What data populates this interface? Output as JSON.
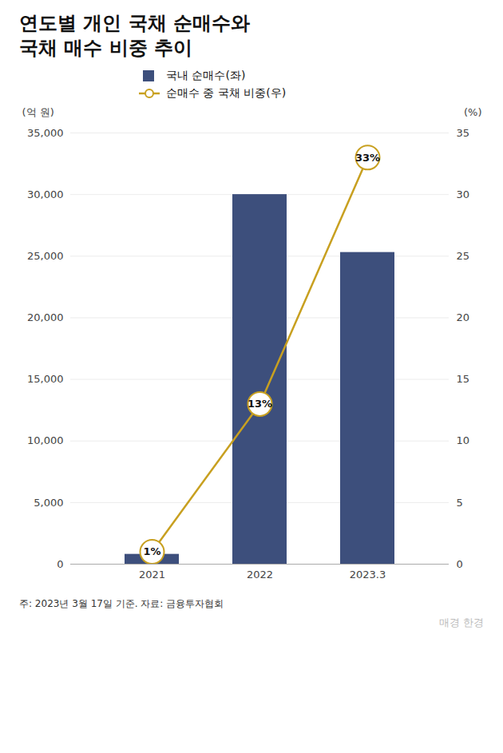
{
  "chart_data": {
    "type": "bar",
    "title": "연도별 개인 국채 순매수와\n국채 매수 비중 추이",
    "categories": [
      "2021",
      "2022",
      "2023.3"
    ],
    "series": [
      {
        "name": "국내 순매수(좌)",
        "type": "bar",
        "color": "#3d4f7c",
        "values": [
          800,
          30000,
          25300
        ]
      },
      {
        "name": "순매수 중 국채 비중(우)",
        "type": "line",
        "axis": "y2",
        "color": "#c8a020",
        "marker": "circle",
        "line_style": "solid",
        "values": [
          1,
          13,
          33
        ],
        "data_labels": true,
        "value_labels": [
          "1%",
          "13%",
          "33%"
        ]
      }
    ],
    "ylabel": "(억 원)",
    "y2label": "(%)",
    "ylim": [
      0,
      35000
    ],
    "yticks": [
      0,
      {
        "value": 5000,
        "label": "5,000"
      },
      {
        "value": 10000,
        "label": "10,000"
      },
      {
        "value": 15000,
        "label": "15,000"
      },
      {
        "value": 20000,
        "label": "20,000"
      },
      {
        "value": 25000,
        "label": "25,000"
      },
      {
        "value": 30000,
        "label": "30,000"
      },
      {
        "value": 35000,
        "label": "35,000"
      }
    ],
    "y2lim": [
      0,
      35
    ],
    "y2ticks": [
      0,
      5,
      10,
      15,
      20,
      25,
      30,
      35
    ],
    "grid": true,
    "legend": "top",
    "footnote": "주: 2023년 3월 17일 기준. 자료: 금융투자협회",
    "watermark": "매경 한경"
  }
}
